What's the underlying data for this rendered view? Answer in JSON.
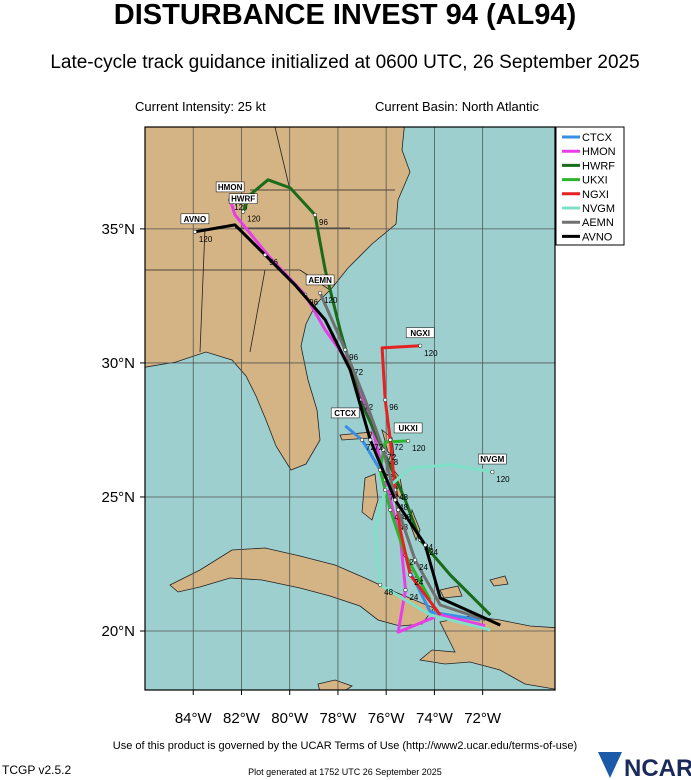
{
  "header": {
    "title": "DISTURBANCE INVEST 94 (AL94)",
    "subtitle": "Late-cycle track guidance initialized at 0600 UTC, 26 September 2025",
    "intensity": "Current Intensity: 25 kt",
    "basin": "Current Basin: North Atlantic"
  },
  "map": {
    "xlim": [
      -86,
      -69
    ],
    "ylim": [
      17.8,
      38.8
    ],
    "xticks": [
      {
        "value": -84,
        "label": "84°W"
      },
      {
        "value": -82,
        "label": "82°W"
      },
      {
        "value": -80,
        "label": "80°W"
      },
      {
        "value": -78,
        "label": "78°W"
      },
      {
        "value": -76,
        "label": "76°W"
      },
      {
        "value": -74,
        "label": "74°W"
      },
      {
        "value": -72,
        "label": "72°W"
      }
    ],
    "yticks": [
      {
        "value": 20,
        "label": "20°N"
      },
      {
        "value": 25,
        "label": "25°N"
      },
      {
        "value": 30,
        "label": "30°N"
      },
      {
        "value": 35,
        "label": "35°N"
      }
    ],
    "grid": true,
    "tracks": [
      {
        "name": "CTCX",
        "color": "#3a8ee6",
        "lon": [
          -72.1,
          -74.17,
          -75.0,
          -75.63,
          -76.25,
          -77.0,
          -77.7
        ],
        "lat": [
          20.41,
          20.71,
          22.2,
          24.14,
          26.01,
          27.13,
          27.65
        ],
        "taus": [
          null,
          null,
          24,
          48,
          null,
          72,
          null
        ]
      },
      {
        "name": "HMON",
        "color": "#e83ee8",
        "lon": [
          -71.9,
          -73.76,
          -75.5,
          -75.2,
          -75.4,
          -76.04,
          -76.66,
          -77.49,
          -78.53,
          -79.36,
          -80.81,
          -82.27,
          -82.47
        ],
        "lat": [
          20.2,
          20.6,
          19.96,
          21.53,
          23.4,
          25.64,
          27.87,
          29.93,
          31.23,
          32.54,
          33.92,
          35.52,
          36.08
        ],
        "taus": [
          null,
          null,
          null,
          24,
          null,
          48,
          null,
          72,
          null,
          96,
          null,
          null,
          120
        ]
      },
      {
        "name": "HWRF",
        "color": "#1a6b1a",
        "lon": [
          -71.68,
          -73.34,
          -74.59,
          -75.21,
          -76.04,
          -77.08,
          -77.91,
          -78.53,
          -78.95,
          -79.98,
          -80.9,
          -81.64,
          -81.93
        ],
        "lat": [
          20.6,
          22.09,
          23.4,
          24.89,
          26.57,
          28.62,
          31.23,
          33.47,
          35.52,
          36.53,
          36.83,
          36.27,
          35.64
        ],
        "taus": [
          null,
          null,
          24,
          null,
          48,
          72,
          null,
          null,
          96,
          null,
          null,
          null,
          120
        ]
      },
      {
        "name": "UKXI",
        "color": "#2cb52c",
        "lon": [
          -74.17,
          -75.21,
          -75.83,
          -76.25,
          -76.04,
          -75.09
        ],
        "lat": [
          21.16,
          22.84,
          24.52,
          26.01,
          27.05,
          27.09
        ],
        "taus": [
          null,
          24,
          48,
          72,
          null,
          120
        ]
      },
      {
        "name": "NGXI",
        "color": "#e52222",
        "lon": [
          -73.76,
          -75.0,
          -75.42,
          -75.63,
          -75.83,
          -76.04,
          -76.17,
          -74.59
        ],
        "lat": [
          20.6,
          22.09,
          23.77,
          25.26,
          27.13,
          28.62,
          30.56,
          30.64
        ],
        "taus": [
          null,
          24,
          null,
          48,
          72,
          96,
          null,
          120
        ]
      },
      {
        "name": "NVGM",
        "color": "#7fe0c8",
        "lon": [
          -71.68,
          -74.17,
          -76.25,
          -76.46,
          -76.04,
          -75.0,
          -73.34,
          -71.6
        ],
        "lat": [
          20.04,
          20.6,
          21.72,
          23.77,
          25.26,
          26.08,
          26.2,
          25.93
        ],
        "taus": [
          null,
          null,
          48,
          null,
          72,
          null,
          null,
          120
        ]
      },
      {
        "name": "AEMN",
        "color": "#707070",
        "lon": [
          -71.89,
          -73.76,
          -74.8,
          -75.5,
          -76.12,
          -76.87,
          -77.7,
          -78.74
        ],
        "lat": [
          20.41,
          20.97,
          22.65,
          24.52,
          26.76,
          28.62,
          30.49,
          32.61
        ],
        "taus": [
          null,
          null,
          24,
          48,
          72,
          null,
          96,
          120
        ]
      },
      {
        "name": "AVNO",
        "color": "#000000",
        "lon": [
          -71.27,
          -73.76,
          -74.38,
          -75.63,
          -76.66,
          -77.49,
          -78.53,
          -79.78,
          -81.02,
          -82.27,
          -83.93
        ],
        "lat": [
          20.22,
          21.23,
          23.21,
          24.89,
          27.13,
          29.74,
          31.61,
          32.91,
          34.03,
          35.15,
          34.89
        ],
        "taus": [
          null,
          null,
          24,
          48,
          72,
          null,
          null,
          null,
          96,
          null,
          120
        ]
      }
    ]
  },
  "footer": {
    "terms": "Use of this product is governed by the UCAR Terms of Use (http://www2.ucar.edu/terms-of-use)",
    "version": "TCGP v2.5.2",
    "generated": "Plot generated at 1752 UTC   26 September 2025",
    "logo": "NCAR"
  }
}
